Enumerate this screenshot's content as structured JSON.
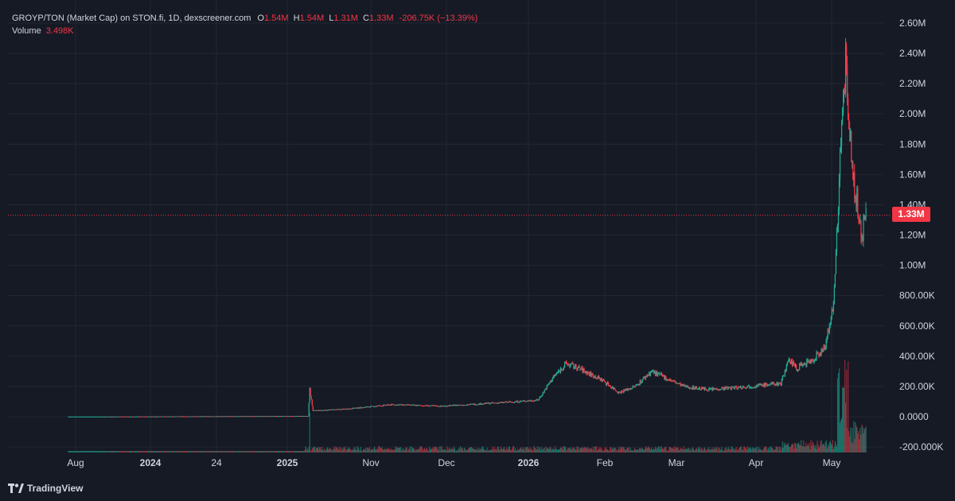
{
  "header": {
    "symbol": "GROYP/TON (Market Cap) on STON.fi, 1D, dexscreener.com",
    "o_label": "O",
    "o_value": "1.54M",
    "h_label": "H",
    "h_value": "1.54M",
    "l_label": "L",
    "l_value": "1.31M",
    "c_label": "C",
    "c_value": "1.33M",
    "change": "-206.75K (−13.39%)",
    "volume_label": "Volume",
    "volume_value": "3.498K"
  },
  "price_badge": "1.33M",
  "brand": "TradingView",
  "colors": {
    "background": "#161a25",
    "up": "#22ab94",
    "down": "#f23645",
    "grid": "#232733",
    "text": "#d1d4dc"
  },
  "chart_data": {
    "type": "candlestick",
    "ylim": [
      -200000,
      2600000
    ],
    "y_ticks": [
      {
        "value": 2600000,
        "label": "2.60M"
      },
      {
        "value": 2400000,
        "label": "2.40M"
      },
      {
        "value": 2200000,
        "label": "2.20M"
      },
      {
        "value": 2000000,
        "label": "2.00M"
      },
      {
        "value": 1800000,
        "label": "1.80M"
      },
      {
        "value": 1600000,
        "label": "1.60M"
      },
      {
        "value": 1400000,
        "label": "1.40M"
      },
      {
        "value": 1200000,
        "label": "1.20M"
      },
      {
        "value": 1000000,
        "label": "1.00M"
      },
      {
        "value": 800000,
        "label": "800.00K"
      },
      {
        "value": 600000,
        "label": "600.00K"
      },
      {
        "value": 400000,
        "label": "400.00K"
      },
      {
        "value": 200000,
        "label": "200.00K"
      },
      {
        "value": 0,
        "label": "0.0000"
      },
      {
        "value": -200000,
        "label": "-200.000K"
      }
    ],
    "x_ticks": [
      {
        "label": "Aug",
        "bold": false
      },
      {
        "label": "2024",
        "bold": true
      },
      {
        "label": "24",
        "bold": false
      },
      {
        "label": "2025",
        "bold": true
      },
      {
        "label": "Nov",
        "bold": false
      },
      {
        "label": "Dec",
        "bold": false
      },
      {
        "label": "2026",
        "bold": true
      },
      {
        "label": "Feb",
        "bold": false
      },
      {
        "label": "Mar",
        "bold": false
      },
      {
        "label": "Apr",
        "bold": false
      },
      {
        "label": "May",
        "bold": false
      }
    ],
    "last_price": 1330000,
    "trend": [
      [
        0,
        0
      ],
      [
        292,
        5000
      ],
      [
        296,
        5000
      ],
      [
        298,
        180000
      ],
      [
        302,
        40000
      ],
      [
        340,
        50000
      ],
      [
        400,
        80000
      ],
      [
        460,
        70000
      ],
      [
        540,
        95000
      ],
      [
        580,
        110000
      ],
      [
        600,
        270000
      ],
      [
        615,
        350000
      ],
      [
        630,
        320000
      ],
      [
        660,
        240000
      ],
      [
        680,
        160000
      ],
      [
        700,
        200000
      ],
      [
        720,
        300000
      ],
      [
        740,
        250000
      ],
      [
        760,
        200000
      ],
      [
        790,
        180000
      ],
      [
        840,
        200000
      ],
      [
        880,
        220000
      ],
      [
        890,
        380000
      ],
      [
        900,
        320000
      ],
      [
        920,
        380000
      ],
      [
        935,
        460000
      ],
      [
        945,
        750000
      ],
      [
        950,
        1300000
      ],
      [
        955,
        1900000
      ],
      [
        960,
        2320000
      ],
      [
        965,
        1850000
      ],
      [
        970,
        1550000
      ],
      [
        975,
        1400000
      ],
      [
        980,
        1200000
      ],
      [
        985,
        1330000
      ]
    ]
  }
}
